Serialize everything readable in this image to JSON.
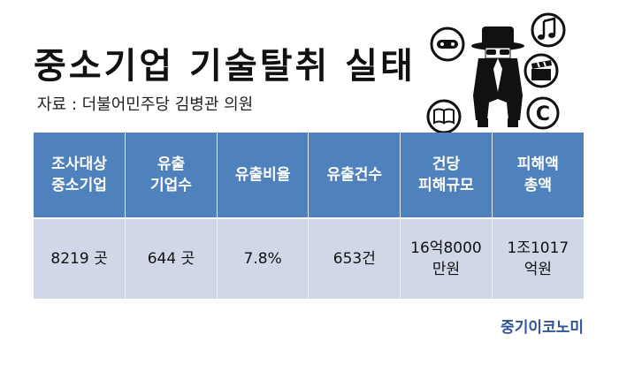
{
  "title": "중소기업 기술탈취 실태",
  "source": "자료 : 더불어민주당 김병관 의원",
  "table": {
    "headers": [
      "조사대상\n중소기업",
      "유출\n기업수",
      "유출비율",
      "유출건수",
      "건당\n피해규모",
      "피해액\n총액"
    ],
    "row": [
      "8219 곳",
      "644 곳",
      "7.8%",
      "653건",
      "16억8000\n만원",
      "1조1017\n억원"
    ]
  },
  "illustration": {
    "icons": [
      "game-controller-icon",
      "music-note-icon",
      "film-clapper-icon",
      "book-icon",
      "copyright-icon"
    ],
    "copyright_symbol": "C",
    "figure": "spy-figure-icon"
  },
  "brand": "중기이코노미",
  "colors": {
    "header_bg": "#4f81bd",
    "cell_bg": "#d0d8e8",
    "brand": "#2f5597"
  }
}
